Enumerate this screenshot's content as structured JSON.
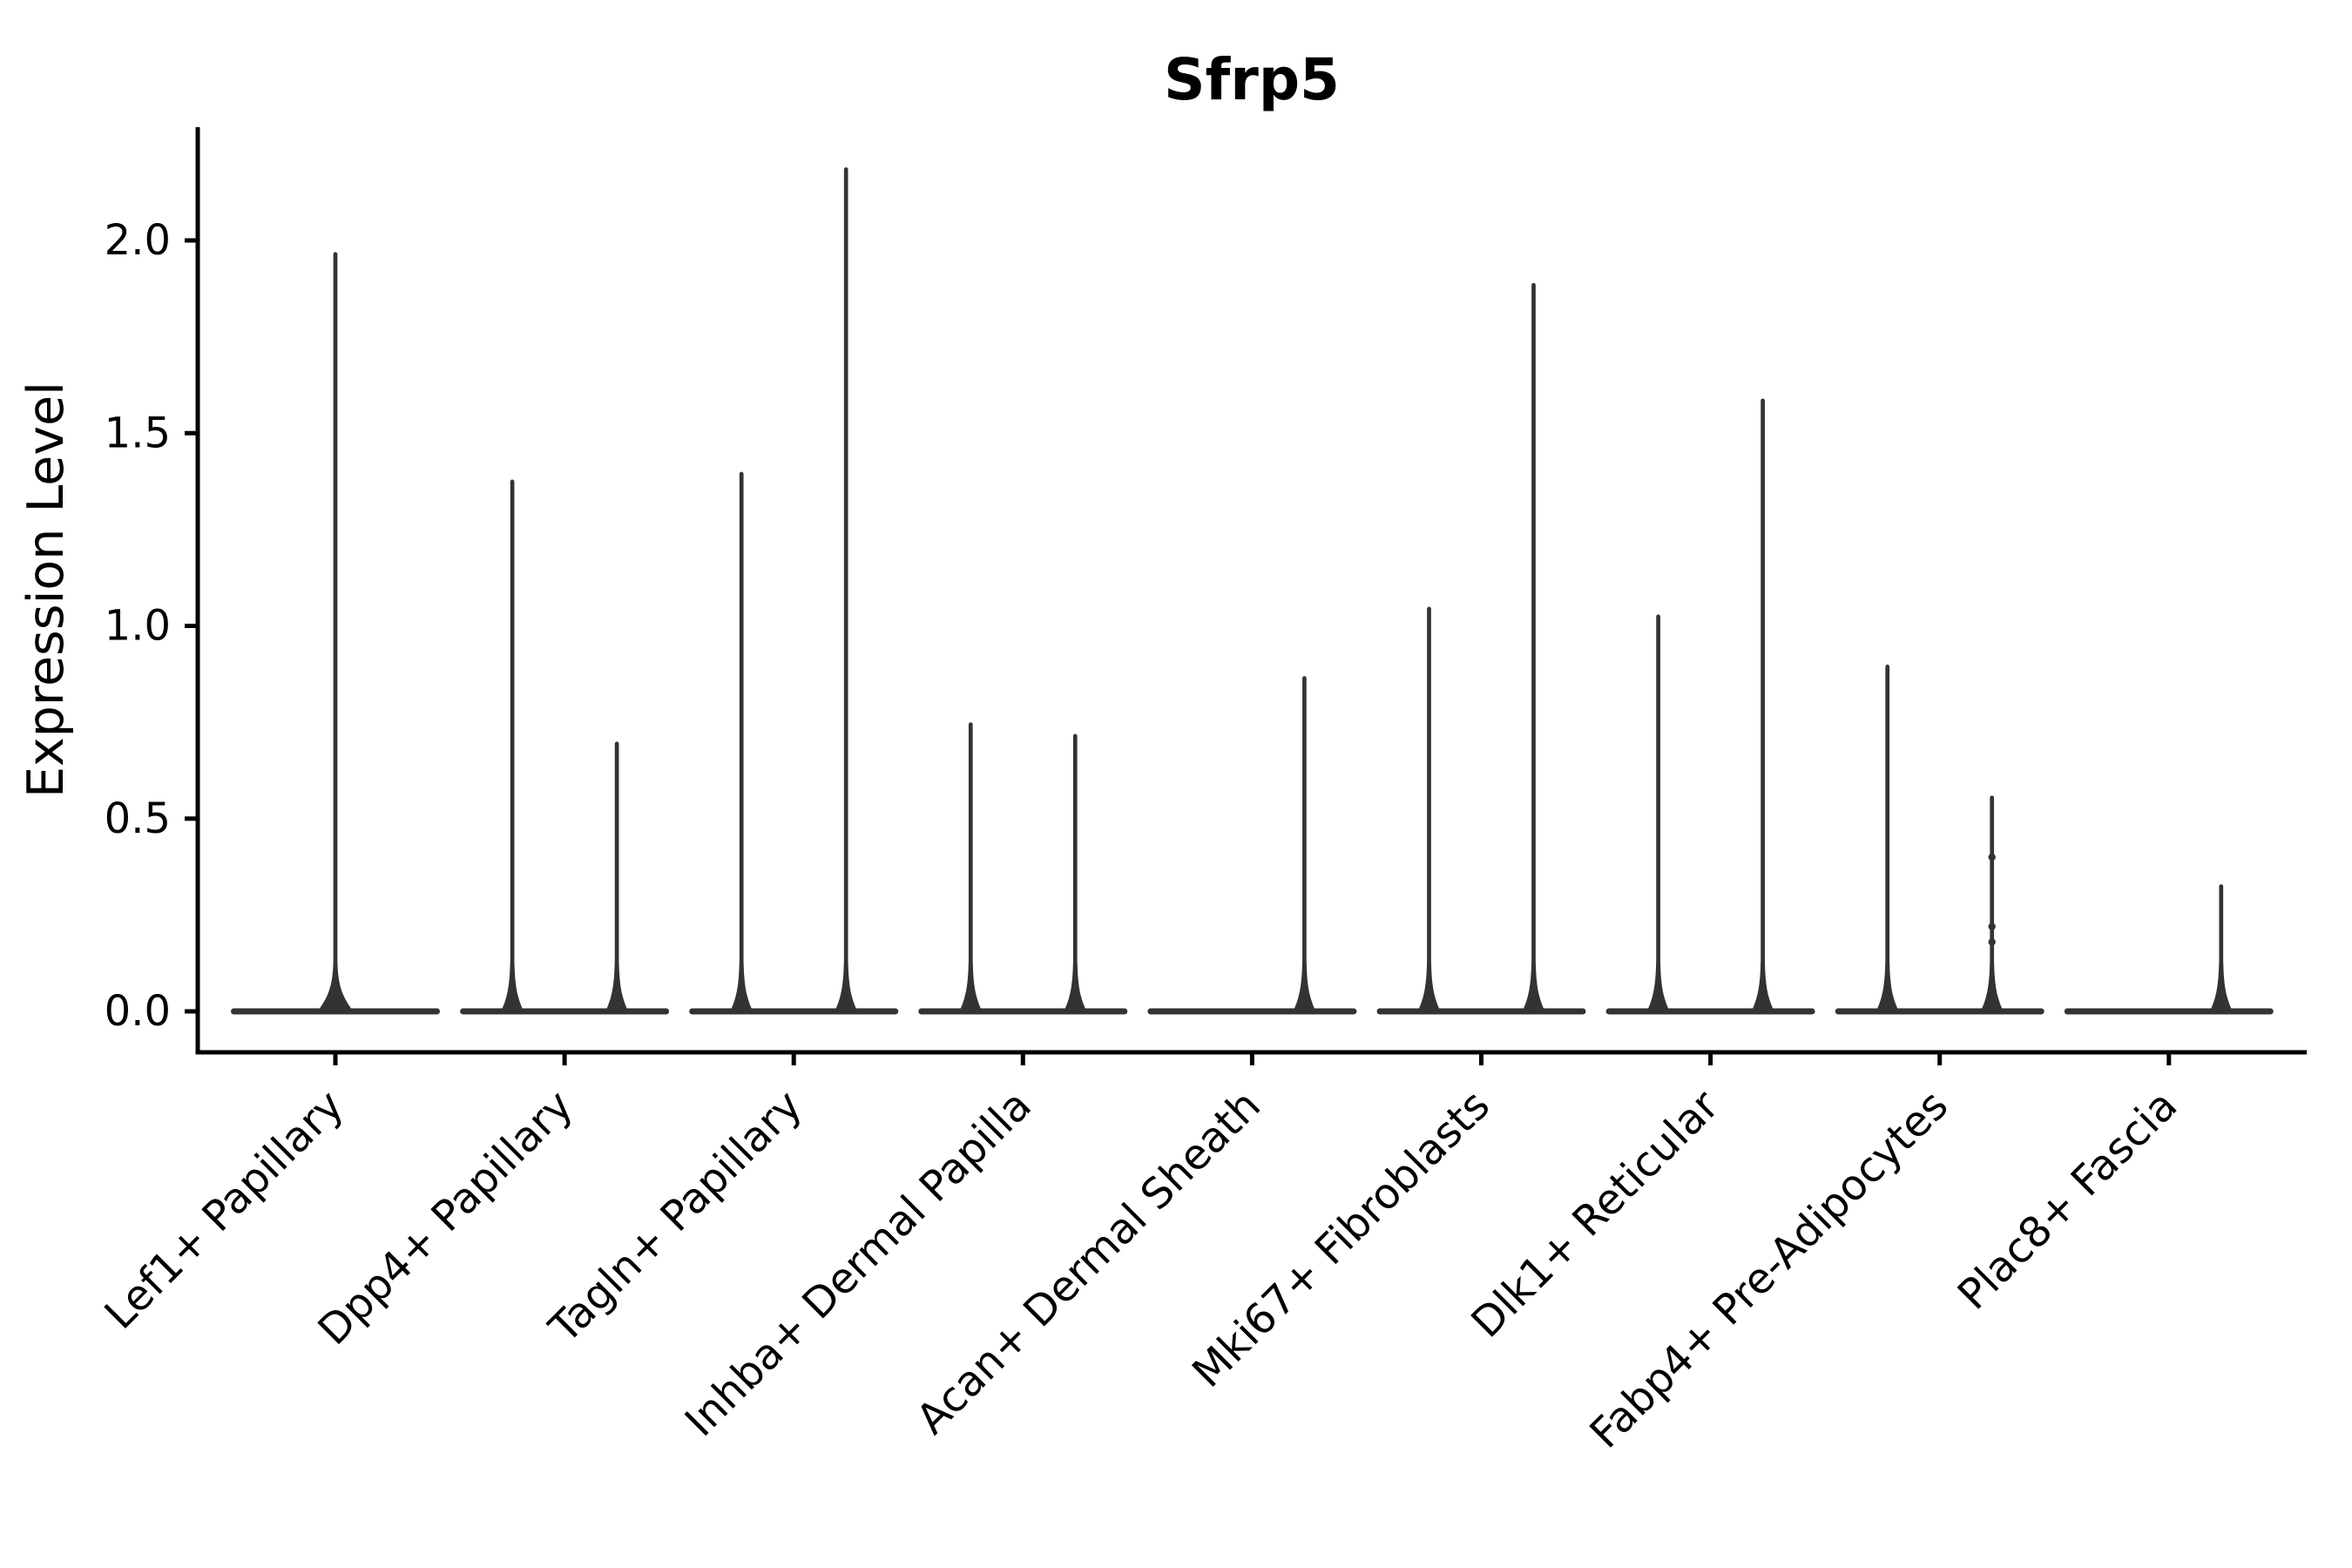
{
  "figure": {
    "title": "Sfrp5",
    "ylabel": "Expression Level"
  },
  "chart_data": {
    "type": "violin",
    "title": "Sfrp5",
    "xlabel": "",
    "ylabel": "Expression Level",
    "categories": [
      "Lef1+ Papillary",
      "Dpp4+ Papillary",
      "Tagln+ Papillary",
      "Inhba+ Dermal Papilla",
      "Acan+ Dermal Sheath",
      "Mki67+ Fibroblasts",
      "Dlk1+ Reticular",
      "Fabp4+ Pre-Adipocytes",
      "Plac8+ Fascia"
    ],
    "yticks": [
      0.0,
      0.5,
      1.0,
      1.5,
      2.0
    ],
    "ylim": [
      -0.11,
      2.28
    ],
    "grid": false,
    "legend": "none",
    "violin_color": "#333333",
    "axis_color": "#000000",
    "background_color": "#ffffff",
    "violins": [
      {
        "category": "Lef1+ Papillary",
        "spikes": [
          {
            "slot": "center",
            "max": 1.97
          }
        ]
      },
      {
        "category": "Dpp4+ Papillary",
        "spikes": [
          {
            "slot": "left",
            "max": 1.38
          },
          {
            "slot": "right",
            "max": 0.7
          }
        ]
      },
      {
        "category": "Tagln+ Papillary",
        "spikes": [
          {
            "slot": "left",
            "max": 1.4
          },
          {
            "slot": "right",
            "max": 2.19
          }
        ]
      },
      {
        "category": "Inhba+ Dermal Papilla",
        "spikes": [
          {
            "slot": "left",
            "max": 0.75
          },
          {
            "slot": "right",
            "max": 0.72
          }
        ]
      },
      {
        "category": "Acan+ Dermal Sheath",
        "spikes": [
          {
            "slot": "right",
            "max": 0.87
          }
        ]
      },
      {
        "category": "Mki67+ Fibroblasts",
        "spikes": [
          {
            "slot": "left",
            "max": 1.05
          },
          {
            "slot": "right",
            "max": 1.89
          }
        ]
      },
      {
        "category": "Dlk1+ Reticular",
        "spikes": [
          {
            "slot": "left",
            "max": 1.03
          },
          {
            "slot": "right",
            "max": 1.59
          }
        ]
      },
      {
        "category": "Fabp4+ Pre-Adipocytes",
        "spikes": [
          {
            "slot": "left",
            "max": 0.9
          },
          {
            "slot": "right",
            "max": 0.56,
            "bumps": [
              0.4,
              0.22,
              0.18
            ]
          }
        ]
      },
      {
        "category": "Plac8+ Fascia",
        "spikes": [
          {
            "slot": "right",
            "max": 0.33
          }
        ]
      }
    ]
  }
}
